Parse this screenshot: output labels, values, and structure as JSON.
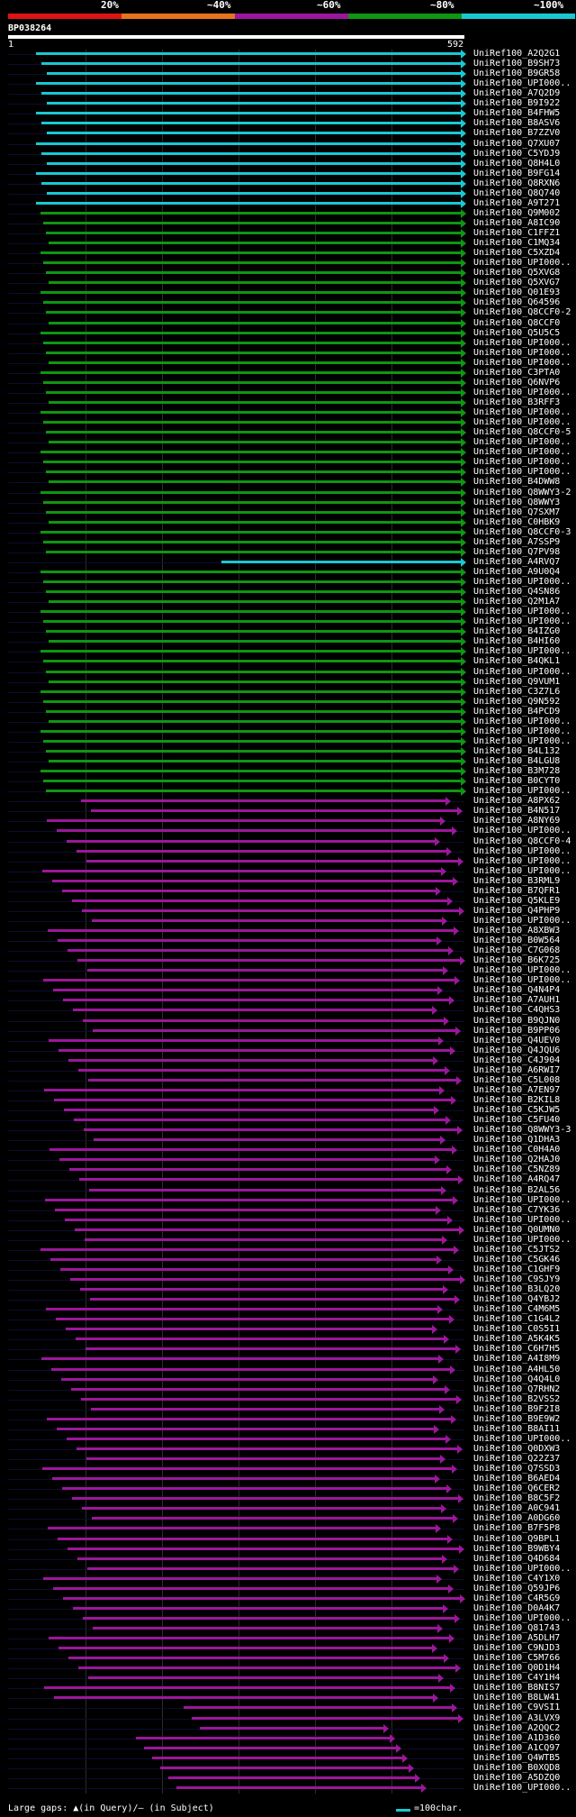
{
  "legend": {
    "labels": [
      "20%",
      "~40%",
      "~60%",
      "~80%",
      "~100%"
    ],
    "colors": [
      "#dc1414",
      "#e6731e",
      "#9b179b",
      "#0f9612",
      "#19c8d2"
    ]
  },
  "query_id": "BP038264",
  "axis": {
    "start": "1",
    "end": "592"
  },
  "footer": {
    "gaps_text": "Large gaps: ▲(in Query)/— (in Subject)",
    "scale_text": "=100char."
  },
  "hits": [
    "UniRef100_A2Q2G1",
    "UniRef100_B9SH73",
    "UniRef100_B9GR58",
    "UniRef100_UPI000..",
    "UniRef100_A7Q2D9",
    "UniRef100_B9I922",
    "UniRef100_B4FHW5",
    "UniRef100_B8ASV6",
    "UniRef100_B7ZZV0",
    "UniRef100_Q7XU07",
    "UniRef100_C5YDJ9",
    "UniRef100_Q8H4L0",
    "UniRef100_B9FG14",
    "UniRef100_Q8RXN6",
    "UniRef100_Q8Q740",
    "UniRef100_A9T271",
    "UniRef100_Q9M002",
    "UniRef100_A8IC90",
    "UniRef100_C1FFZ1",
    "UniRef100_C1MQ34",
    "UniRef100_C5XZD4",
    "UniRef100_UPI000..",
    "UniRef100_Q5XVG8",
    "UniRef100_Q5XVG7",
    "UniRef100_Q01E93",
    "UniRef100_Q64596",
    "UniRef100_Q8CCF0-2",
    "UniRef100_Q8CCF0",
    "UniRef100_Q5U5C5",
    "UniRef100_UPI000..",
    "UniRef100_UPI000..",
    "UniRef100_UPI000..",
    "UniRef100_C3PTA0",
    "UniRef100_Q6NVP6",
    "UniRef100_UPI000..",
    "UniRef100_B3RFF3",
    "UniRef100_UPI000..",
    "UniRef100_UPI000..",
    "UniRef100_Q8CCF0-5",
    "UniRef100_UPI000..",
    "UniRef100_UPI000..",
    "UniRef100_UPI000..",
    "UniRef100_UPI000..",
    "UniRef100_B4DWW8",
    "UniRef100_Q8WWY3-2",
    "UniRef100_Q8WWY3",
    "UniRef100_Q7SXM7",
    "UniRef100_C0HBK9",
    "UniRef100_Q8CCF0-3",
    "UniRef100_A7SSP9",
    "UniRef100_Q7PV98",
    "UniRef100_A4RVQ7",
    "UniRef100_A9U0Q4",
    "UniRef100_UPI000..",
    "UniRef100_Q4SN86",
    "UniRef100_Q2M1A7",
    "UniRef100_UPI000..",
    "UniRef100_UPI000..",
    "UniRef100_B4IZG0",
    "UniRef100_B4HI60",
    "UniRef100_UPI000..",
    "UniRef100_B4QKL1",
    "UniRef100_UPI000..",
    "UniRef100_Q9VUM1",
    "UniRef100_C3Z7L6",
    "UniRef100_Q9N592",
    "UniRef100_B4PCD9",
    "UniRef100_UPI000..",
    "UniRef100_UPI000..",
    "UniRef100_UPI000..",
    "UniRef100_B4L132",
    "UniRef100_B4LGU8",
    "UniRef100_B3M728",
    "UniRef100_B0CYT0",
    "UniRef100_UPI000..",
    "UniRef100_A8PX62",
    "UniRef100_B4N517",
    "UniRef100_A8NY69",
    "UniRef100_UPI000..",
    "UniRef100_Q8CCF0-4",
    "UniRef100_UPI000..",
    "UniRef100_UPI000..",
    "UniRef100_UPI000..",
    "UniRef100_B3RML9",
    "UniRef100_B7QFR1",
    "UniRef100_Q5KLE9",
    "UniRef100_Q4PHP9",
    "UniRef100_UPI000..",
    "UniRef100_A8XBW3",
    "UniRef100_B0W564",
    "UniRef100_C7G068",
    "UniRef100_B6K725",
    "UniRef100_UPI000..",
    "UniRef100_UPI000..",
    "UniRef100_Q4N4P4",
    "UniRef100_A7AUH1",
    "UniRef100_C4QHS3",
    "UniRef100_B9QJN0",
    "UniRef100_B9PP06",
    "UniRef100_Q4UEV0",
    "UniRef100_Q4JQU6",
    "UniRef100_C4J904",
    "UniRef100_A6RWI7",
    "UniRef100_C5L008",
    "UniRef100_A7EN97",
    "UniRef100_B2KIL8",
    "UniRef100_C5KJW5",
    "UniRef100_C5FU40",
    "UniRef100_Q8WWY3-3",
    "UniRef100_Q1DHA3",
    "UniRef100_C0H4A0",
    "UniRef100_Q2HAJ0",
    "UniRef100_C5NZ89",
    "UniRef100_A4RQ47",
    "UniRef100_B2AL56",
    "UniRef100_UPI000..",
    "UniRef100_C7YK36",
    "UniRef100_UPI000..",
    "UniRef100_Q0UMN0",
    "UniRef100_UPI000..",
    "UniRef100_C5JTS2",
    "UniRef100_C5GK46",
    "UniRef100_C1GHF9",
    "UniRef100_C9SJY9",
    "UniRef100_B3LQ20",
    "UniRef100_Q4YBJ2",
    "UniRef100_C4M6M5",
    "UniRef100_C1G4L2",
    "UniRef100_C0S5I1",
    "UniRef100_A5K4K5",
    "UniRef100_C6H7H5",
    "UniRef100_A4I8M9",
    "UniRef100_A4HL50",
    "UniRef100_Q4Q4L0",
    "UniRef100_Q7RHN2",
    "UniRef100_B2VSS2",
    "UniRef100_B9F2I8",
    "UniRef100_B9E9W2",
    "UniRef100_B8AI11",
    "UniRef100_UPI000..",
    "UniRef100_Q0DXW3",
    "UniRef100_Q22Z37",
    "UniRef100_Q7SSD3",
    "UniRef100_B6AED4",
    "UniRef100_Q6CER2",
    "UniRef100_B8C5F2",
    "UniRef100_A0C941",
    "UniRef100_A0DG60",
    "UniRef100_B7F5P8",
    "UniRef100_Q9BPL1",
    "UniRef100_B9WBY4",
    "UniRef100_Q4D684",
    "UniRef100_UPI000..",
    "UniRef100_C4Y1X0",
    "UniRef100_Q59JP6",
    "UniRef100_C4R5G9",
    "UniRef100_D0A4K7",
    "UniRef100_UPI000..",
    "UniRef100_Q81743",
    "UniRef100_A5DLH7",
    "UniRef100_C9NJD3",
    "UniRef100_C5M766",
    "UniRef100_Q0D1H4",
    "UniRef100_C4Y1H4",
    "UniRef100_B8NIS7",
    "UniRef100_B8LW41",
    "UniRef100_C9VSI1",
    "UniRef100_A3LVX9",
    "UniRef100_A2QQC2",
    "UniRef100_A1D360",
    "UniRef100_A1CQ97",
    "UniRef100_Q4WTB5",
    "UniRef100_B0XQD8",
    "UniRef100_A5DZQ0",
    "UniRef100_UPI000.."
  ]
}
